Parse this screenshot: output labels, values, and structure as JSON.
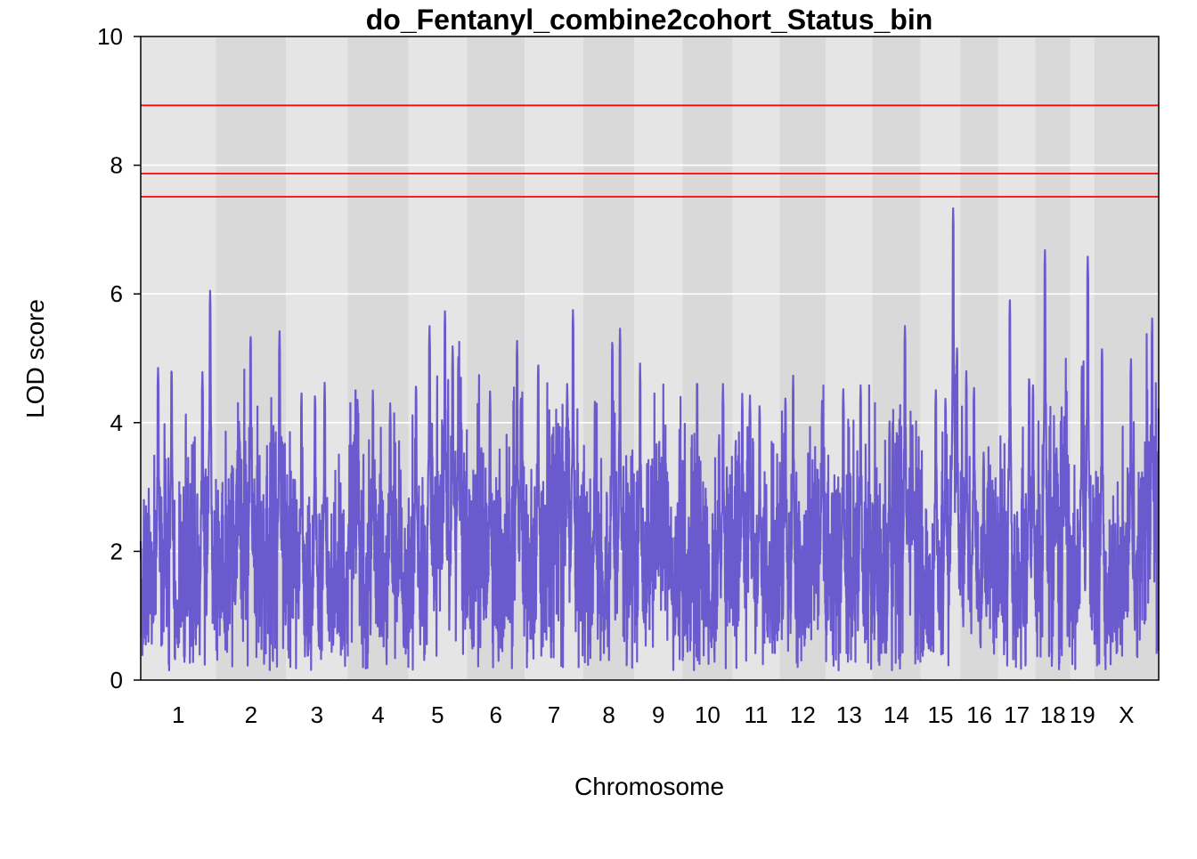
{
  "chart_data": {
    "type": "line",
    "title": "do_Fentanyl_combine2cohort_Status_bin",
    "xlabel": "Chromosome",
    "ylabel": "LOD score",
    "ylim": [
      0,
      10
    ],
    "yticks": [
      0,
      2,
      4,
      6,
      8,
      10
    ],
    "grid": true,
    "legend": "none",
    "line_color": "#6A5ACD",
    "threshold_color": "#FF0000",
    "thresholds": [
      8.93,
      7.87,
      7.51
    ],
    "band_colors": [
      "#E5E5E5",
      "#D9D9D9"
    ],
    "chromosomes": [
      {
        "label": "1",
        "start": 0,
        "end": 195,
        "peak_pos": 180,
        "peak": 6.05,
        "secondary": [
          [
            45,
            4.88
          ],
          [
            80,
            4.87
          ],
          [
            160,
            4.8
          ]
        ]
      },
      {
        "label": "2",
        "start": 195,
        "end": 377,
        "peak_pos": 165,
        "peak": 5.42,
        "secondary": [
          [
            90,
            5.39
          ],
          [
            60,
            4.03
          ]
        ]
      },
      {
        "label": "3",
        "start": 377,
        "end": 537,
        "peak_pos": 100,
        "peak": 4.62,
        "secondary": [
          [
            75,
            4.47
          ],
          [
            40,
            4.5
          ]
        ]
      },
      {
        "label": "4",
        "start": 537,
        "end": 694,
        "peak_pos": 65,
        "peak": 4.5,
        "secondary": [
          [
            25,
            4.43
          ],
          [
            110,
            4.3
          ]
        ]
      },
      {
        "label": "5",
        "start": 694,
        "end": 846,
        "peak_pos": 95,
        "peak": 5.73,
        "secondary": [
          [
            55,
            5.5
          ],
          [
            115,
            5.2
          ],
          [
            20,
            4.62
          ],
          [
            130,
            5.08
          ]
        ]
      },
      {
        "label": "6",
        "start": 846,
        "end": 996,
        "peak_pos": 130,
        "peak": 5.27,
        "secondary": [
          [
            60,
            4.5
          ],
          [
            140,
            4.45
          ]
        ]
      },
      {
        "label": "7",
        "start": 996,
        "end": 1148,
        "peak_pos": 125,
        "peak": 5.75,
        "secondary": [
          [
            35,
            4.95
          ],
          [
            110,
            4.6
          ]
        ]
      },
      {
        "label": "8",
        "start": 1148,
        "end": 1280,
        "peak_pos": 95,
        "peak": 5.46,
        "secondary": [
          [
            75,
            5.3
          ],
          [
            30,
            4.4
          ]
        ]
      },
      {
        "label": "9",
        "start": 1280,
        "end": 1405,
        "peak_pos": 15,
        "peak": 4.92,
        "secondary": [
          [
            60,
            3.1
          ]
        ]
      },
      {
        "label": "10",
        "start": 1405,
        "end": 1535,
        "peak_pos": 105,
        "peak": 4.6,
        "secondary": [
          [
            95,
            3.85
          ]
        ]
      },
      {
        "label": "11",
        "start": 1535,
        "end": 1657,
        "peak_pos": 25,
        "peak": 4.45,
        "secondary": [
          [
            45,
            4.45
          ],
          [
            70,
            4.3
          ]
        ]
      },
      {
        "label": "12",
        "start": 1657,
        "end": 1777,
        "peak_pos": 35,
        "peak": 4.73,
        "secondary": [
          [
            15,
            4.42
          ],
          [
            110,
            4.34
          ]
        ]
      },
      {
        "label": "13",
        "start": 1777,
        "end": 1897,
        "peak_pos": 90,
        "peak": 4.58,
        "secondary": [
          [
            45,
            4.55
          ]
        ]
      },
      {
        "label": "14",
        "start": 1897,
        "end": 2022,
        "peak_pos": 85,
        "peak": 5.5,
        "secondary": [
          [
            45,
            4.05
          ]
        ]
      },
      {
        "label": "15",
        "start": 2022,
        "end": 2126,
        "peak_pos": 85,
        "peak": 7.33,
        "secondary": [
          [
            40,
            4.55
          ],
          [
            65,
            4.4
          ],
          [
            95,
            5.2
          ]
        ]
      },
      {
        "label": "16",
        "start": 2126,
        "end": 2224,
        "peak_pos": 15,
        "peak": 4.8,
        "secondary": [
          [
            35,
            4.6
          ],
          [
            60,
            3.55
          ]
        ]
      },
      {
        "label": "17",
        "start": 2224,
        "end": 2320,
        "peak_pos": 30,
        "peak": 5.9,
        "secondary": [
          [
            80,
            4.75
          ],
          [
            90,
            4.64
          ]
        ]
      },
      {
        "label": "18",
        "start": 2320,
        "end": 2411,
        "peak_pos": 25,
        "peak": 6.68,
        "secondary": [
          [
            75,
            4.15
          ],
          [
            55,
            3.6
          ]
        ]
      },
      {
        "label": "19",
        "start": 2411,
        "end": 2473,
        "peak_pos": 45,
        "peak": 6.58,
        "secondary": [
          [
            30,
            4.95
          ]
        ]
      },
      {
        "label": "X",
        "start": 2473,
        "end": 2640,
        "peak_pos": 150,
        "peak": 5.62,
        "secondary": [
          [
            20,
            5.2
          ],
          [
            95,
            5.03
          ]
        ]
      }
    ]
  }
}
